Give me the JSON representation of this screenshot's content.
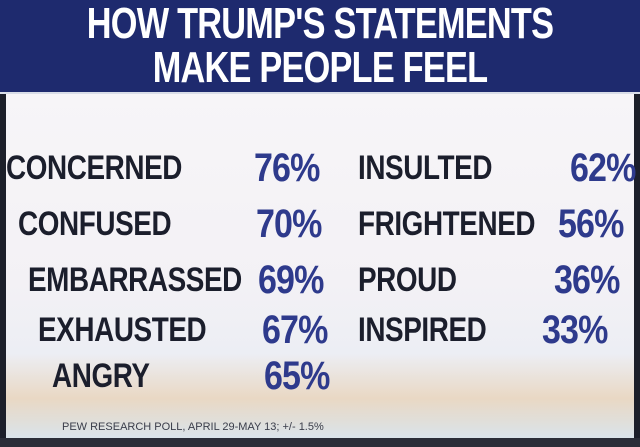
{
  "title": {
    "line1": "HOW TRUMP'S STATEMENTS",
    "line2": "MAKE PEOPLE FEEL"
  },
  "left_column": [
    {
      "label": "CONCERNED",
      "value": "76%"
    },
    {
      "label": "CONFUSED",
      "value": "70%"
    },
    {
      "label": "EMBARRASSED",
      "value": "69%"
    },
    {
      "label": "EXHAUSTED",
      "value": "67%"
    },
    {
      "label": "ANGRY",
      "value": "65%"
    }
  ],
  "right_column": [
    {
      "label": "INSULTED",
      "value": "62%"
    },
    {
      "label": "FRIGHTENED",
      "value": "56%"
    },
    {
      "label": "PROUD",
      "value": "36%"
    },
    {
      "label": "INSPIRED",
      "value": "33%"
    }
  ],
  "source": "PEW RESEARCH POLL, APRIL 29-MAY 13; +/- 1.5%",
  "colors": {
    "header_bg": "#1e2a6e",
    "label": "#1b1e2c",
    "percent": "#2e3a8c"
  }
}
